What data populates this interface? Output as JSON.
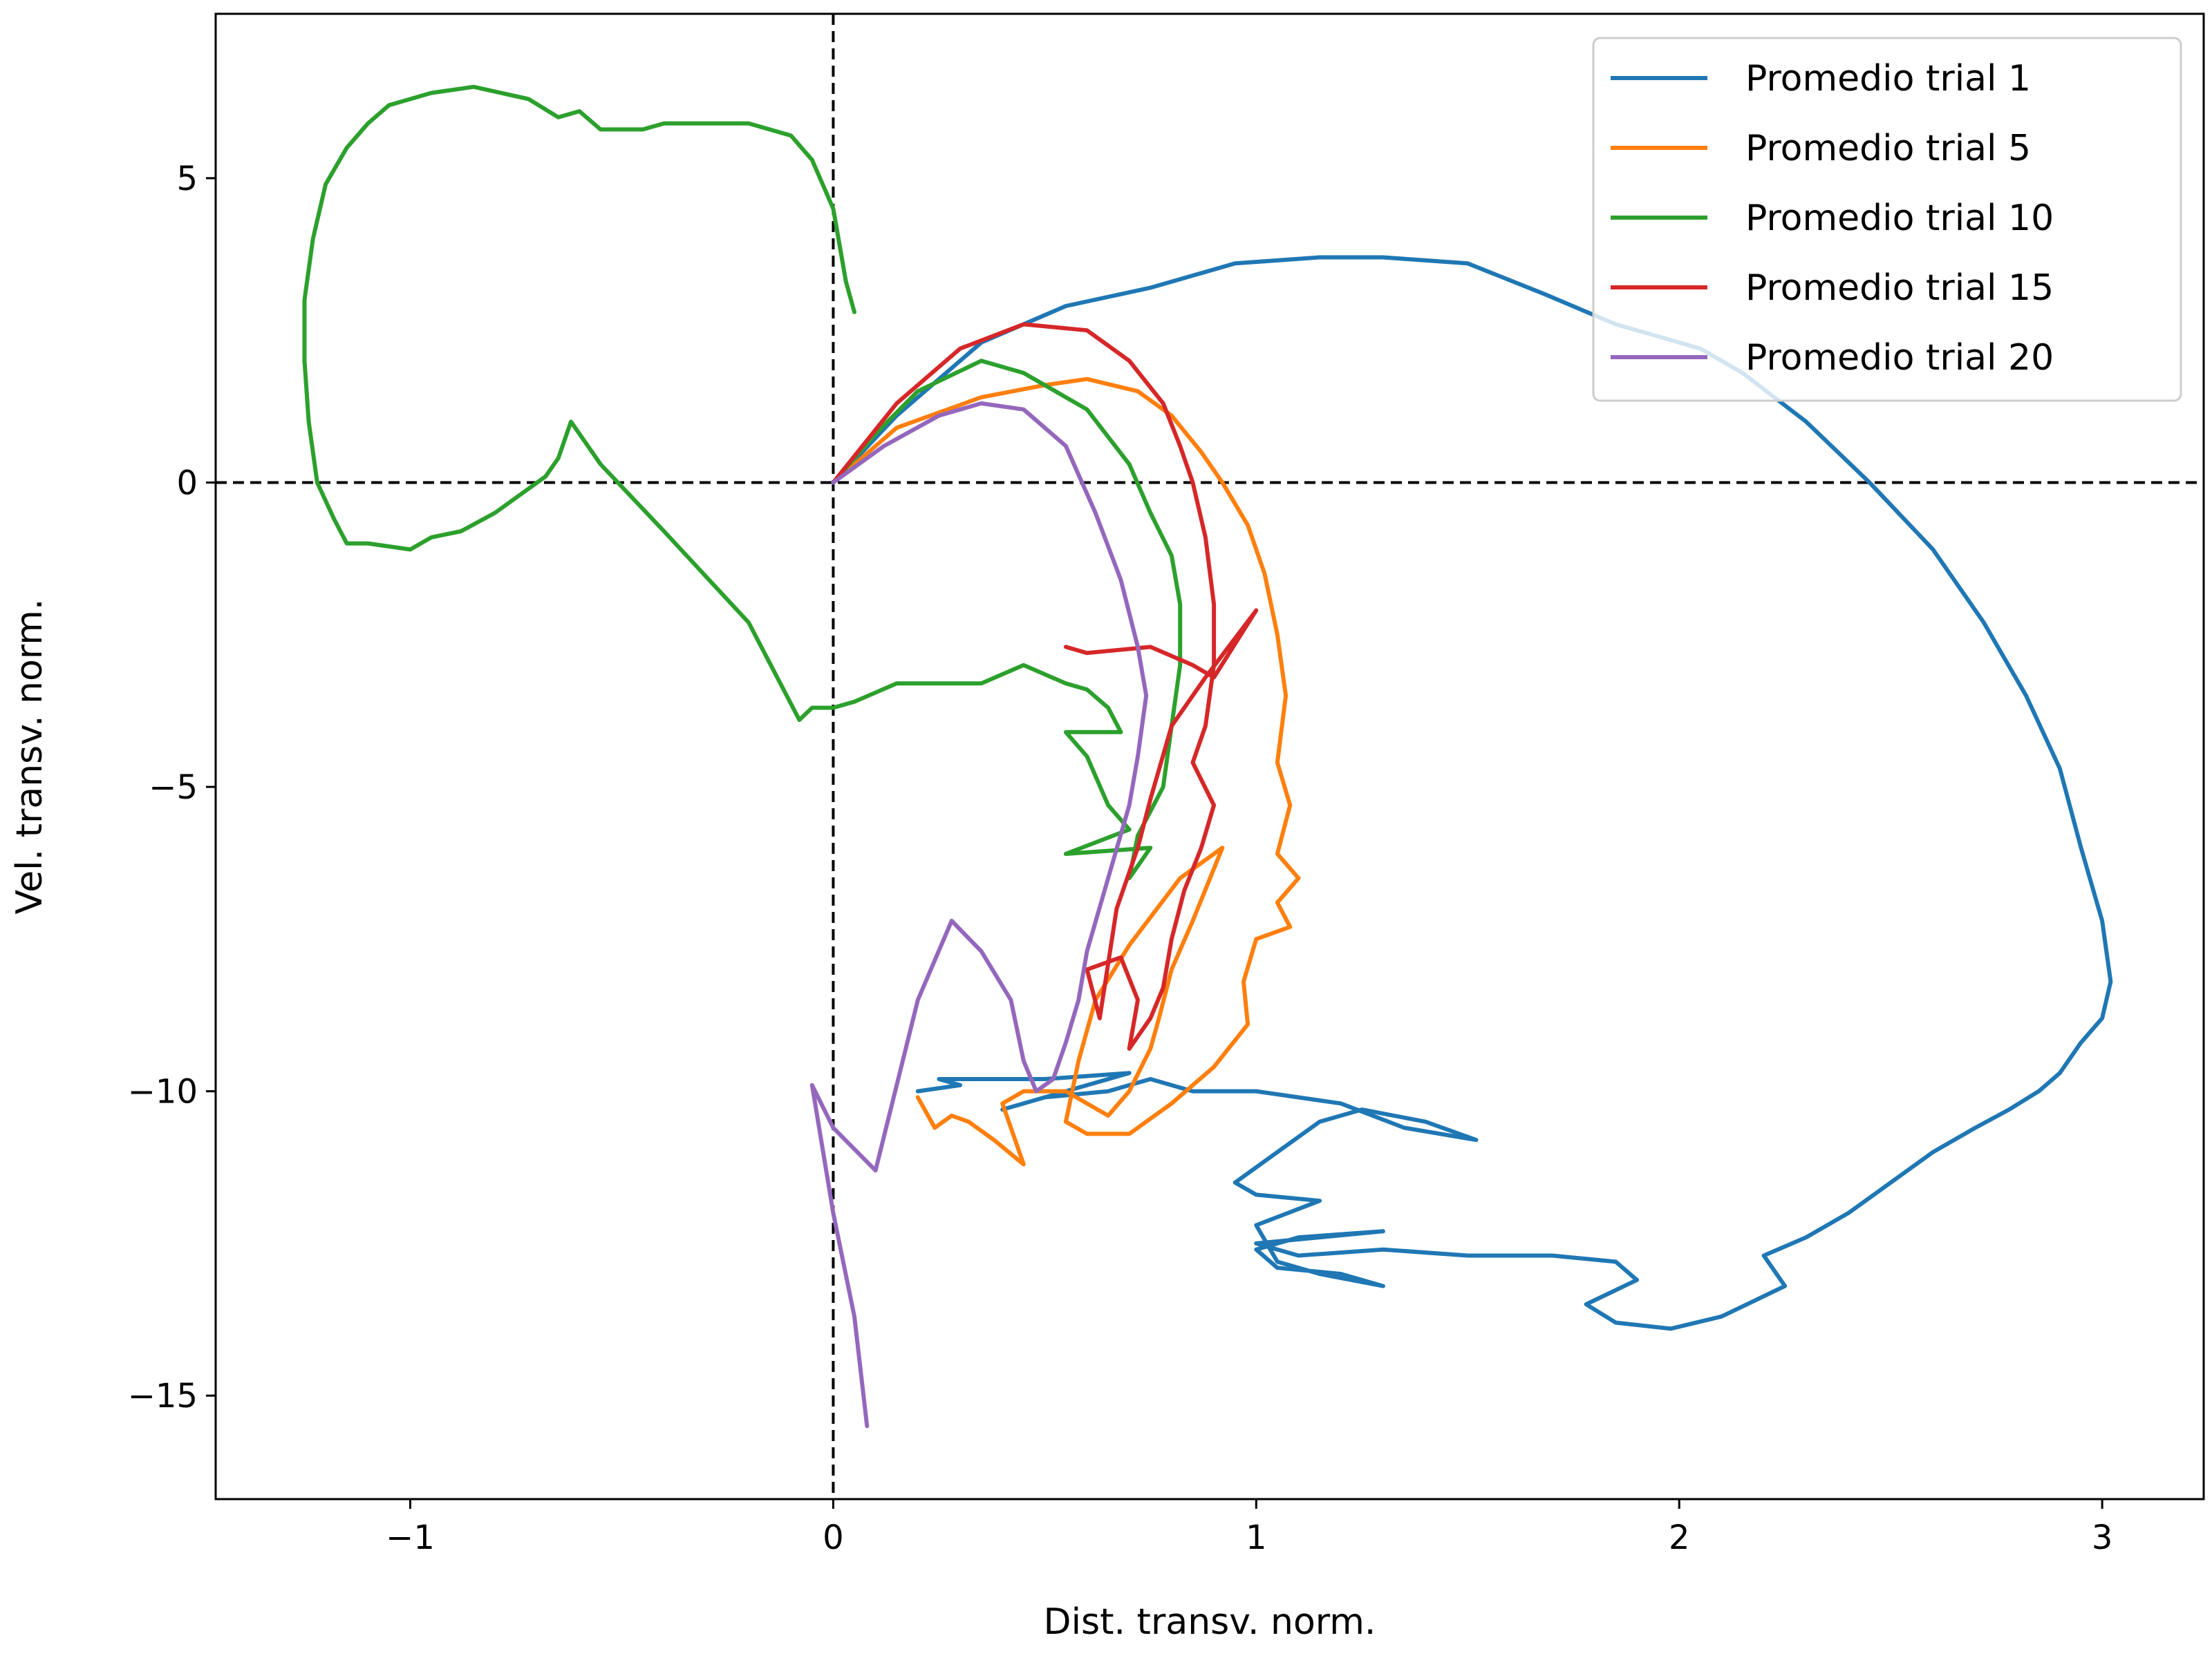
{
  "chart_data": {
    "type": "line",
    "title": "",
    "xlabel": "Dist. transv. norm.",
    "ylabel": "Vel. transv. norm.",
    "xlim": [
      -1.46,
      3.24
    ],
    "ylim": [
      -16.7,
      7.7
    ],
    "xticks": [
      -1,
      0,
      1,
      2,
      3
    ],
    "yticks": [
      5,
      0,
      -5,
      -10,
      -15
    ],
    "xtick_labels": [
      "−1",
      "0",
      "1",
      "2",
      "3"
    ],
    "ytick_labels": [
      "5",
      "0",
      "−5",
      "−10",
      "−15"
    ],
    "reference_lines": {
      "x": 0,
      "y": 0,
      "style": "dashed",
      "color": "#000000"
    },
    "legend_position": "top-right",
    "series": [
      {
        "name": "Promedio trial 1",
        "color": "#1f77b4",
        "points": [
          [
            0,
            0
          ],
          [
            0.15,
            1.1
          ],
          [
            0.35,
            2.3
          ],
          [
            0.55,
            2.9
          ],
          [
            0.75,
            3.2
          ],
          [
            0.95,
            3.6
          ],
          [
            1.15,
            3.7
          ],
          [
            1.3,
            3.7
          ],
          [
            1.5,
            3.6
          ],
          [
            1.68,
            3.1
          ],
          [
            1.85,
            2.6
          ],
          [
            2.05,
            2.2
          ],
          [
            2.15,
            1.8
          ],
          [
            2.3,
            1.0
          ],
          [
            2.45,
            0.0
          ],
          [
            2.6,
            -1.1
          ],
          [
            2.72,
            -2.3
          ],
          [
            2.82,
            -3.5
          ],
          [
            2.9,
            -4.7
          ],
          [
            2.95,
            -6.0
          ],
          [
            3.0,
            -7.2
          ],
          [
            3.02,
            -8.2
          ],
          [
            3.0,
            -8.8
          ],
          [
            2.95,
            -9.2
          ],
          [
            2.9,
            -9.7
          ],
          [
            2.85,
            -10.0
          ],
          [
            2.78,
            -10.3
          ],
          [
            2.7,
            -10.6
          ],
          [
            2.6,
            -11.0
          ],
          [
            2.5,
            -11.5
          ],
          [
            2.4,
            -12.0
          ],
          [
            2.3,
            -12.4
          ],
          [
            2.2,
            -12.7
          ],
          [
            2.25,
            -13.2
          ],
          [
            2.1,
            -13.7
          ],
          [
            1.98,
            -13.9
          ],
          [
            1.85,
            -13.8
          ],
          [
            1.78,
            -13.5
          ],
          [
            1.9,
            -13.1
          ],
          [
            1.85,
            -12.8
          ],
          [
            1.7,
            -12.7
          ],
          [
            1.5,
            -12.7
          ],
          [
            1.3,
            -12.6
          ],
          [
            1.1,
            -12.7
          ],
          [
            1.0,
            -12.5
          ],
          [
            1.3,
            -12.3
          ],
          [
            1.1,
            -12.4
          ],
          [
            1.0,
            -12.6
          ],
          [
            1.05,
            -12.9
          ],
          [
            1.2,
            -13.0
          ],
          [
            1.3,
            -13.2
          ],
          [
            1.15,
            -13.0
          ],
          [
            1.05,
            -12.8
          ],
          [
            1.0,
            -12.2
          ],
          [
            1.15,
            -11.8
          ],
          [
            1.0,
            -11.7
          ],
          [
            0.95,
            -11.5
          ],
          [
            1.05,
            -11.0
          ],
          [
            1.15,
            -10.5
          ],
          [
            1.25,
            -10.3
          ],
          [
            1.4,
            -10.5
          ],
          [
            1.52,
            -10.8
          ],
          [
            1.35,
            -10.6
          ],
          [
            1.2,
            -10.2
          ],
          [
            1.0,
            -10.0
          ],
          [
            0.85,
            -10.0
          ],
          [
            0.75,
            -9.8
          ],
          [
            0.65,
            -10.0
          ],
          [
            0.5,
            -10.1
          ],
          [
            0.4,
            -10.3
          ],
          [
            0.55,
            -10.0
          ],
          [
            0.7,
            -9.7
          ],
          [
            0.5,
            -9.8
          ],
          [
            0.35,
            -9.8
          ],
          [
            0.25,
            -9.8
          ],
          [
            0.3,
            -9.9
          ],
          [
            0.2,
            -10.0
          ]
        ]
      },
      {
        "name": "Promedio trial 5",
        "color": "#ff7f0e",
        "points": [
          [
            0,
            0
          ],
          [
            0.15,
            0.9
          ],
          [
            0.35,
            1.4
          ],
          [
            0.5,
            1.6
          ],
          [
            0.6,
            1.7
          ],
          [
            0.72,
            1.5
          ],
          [
            0.8,
            1.1
          ],
          [
            0.87,
            0.5
          ],
          [
            0.92,
            0.0
          ],
          [
            0.98,
            -0.7
          ],
          [
            1.02,
            -1.5
          ],
          [
            1.05,
            -2.5
          ],
          [
            1.07,
            -3.5
          ],
          [
            1.05,
            -4.6
          ],
          [
            1.08,
            -5.3
          ],
          [
            1.05,
            -6.1
          ],
          [
            1.1,
            -6.5
          ],
          [
            1.05,
            -6.9
          ],
          [
            1.08,
            -7.3
          ],
          [
            1.0,
            -7.5
          ],
          [
            0.97,
            -8.2
          ],
          [
            0.98,
            -8.9
          ],
          [
            0.9,
            -9.6
          ],
          [
            0.8,
            -10.2
          ],
          [
            0.7,
            -10.7
          ],
          [
            0.6,
            -10.7
          ],
          [
            0.55,
            -10.5
          ],
          [
            0.58,
            -9.5
          ],
          [
            0.62,
            -8.5
          ],
          [
            0.7,
            -7.6
          ],
          [
            0.82,
            -6.5
          ],
          [
            0.92,
            -6.0
          ],
          [
            0.85,
            -7.2
          ],
          [
            0.8,
            -8.0
          ],
          [
            0.77,
            -8.8
          ],
          [
            0.75,
            -9.3
          ],
          [
            0.7,
            -10.0
          ],
          [
            0.65,
            -10.4
          ],
          [
            0.6,
            -10.2
          ],
          [
            0.55,
            -10.0
          ],
          [
            0.45,
            -10.0
          ],
          [
            0.4,
            -10.2
          ],
          [
            0.45,
            -11.2
          ],
          [
            0.38,
            -10.8
          ],
          [
            0.32,
            -10.5
          ],
          [
            0.28,
            -10.4
          ],
          [
            0.24,
            -10.6
          ],
          [
            0.2,
            -10.1
          ]
        ]
      },
      {
        "name": "Promedio trial 10",
        "color": "#2ca02c",
        "points": [
          [
            0.05,
            2.8
          ],
          [
            0.03,
            3.3
          ],
          [
            0.0,
            4.5
          ],
          [
            -0.05,
            5.3
          ],
          [
            -0.1,
            5.7
          ],
          [
            -0.2,
            5.9
          ],
          [
            -0.3,
            5.9
          ],
          [
            -0.4,
            5.9
          ],
          [
            -0.45,
            5.8
          ],
          [
            -0.55,
            5.8
          ],
          [
            -0.6,
            6.1
          ],
          [
            -0.65,
            6.0
          ],
          [
            -0.72,
            6.3
          ],
          [
            -0.85,
            6.5
          ],
          [
            -0.95,
            6.4
          ],
          [
            -1.05,
            6.2
          ],
          [
            -1.1,
            5.9
          ],
          [
            -1.15,
            5.5
          ],
          [
            -1.2,
            4.9
          ],
          [
            -1.23,
            4.0
          ],
          [
            -1.25,
            3.0
          ],
          [
            -1.25,
            2.0
          ],
          [
            -1.24,
            1.0
          ],
          [
            -1.22,
            0.0
          ],
          [
            -1.18,
            -0.6
          ],
          [
            -1.15,
            -1.0
          ],
          [
            -1.1,
            -1.0
          ],
          [
            -1.0,
            -1.1
          ],
          [
            -0.95,
            -0.9
          ],
          [
            -0.88,
            -0.8
          ],
          [
            -0.8,
            -0.5
          ],
          [
            -0.72,
            -0.1
          ],
          [
            -0.68,
            0.1
          ],
          [
            -0.65,
            0.4
          ],
          [
            -0.62,
            1.0
          ],
          [
            -0.55,
            0.3
          ],
          [
            -0.4,
            -0.8
          ],
          [
            -0.2,
            -2.3
          ],
          [
            -0.08,
            -3.9
          ],
          [
            -0.05,
            -3.7
          ],
          [
            0.0,
            -3.7
          ],
          [
            0.05,
            -3.6
          ],
          [
            0.15,
            -3.3
          ],
          [
            0.35,
            -3.3
          ],
          [
            0.45,
            -3.0
          ],
          [
            0.55,
            -3.3
          ],
          [
            0.6,
            -3.4
          ],
          [
            0.65,
            -3.7
          ],
          [
            0.68,
            -4.1
          ],
          [
            0.55,
            -4.1
          ],
          [
            0.6,
            -4.5
          ],
          [
            0.65,
            -5.3
          ],
          [
            0.7,
            -5.7
          ],
          [
            0.55,
            -6.1
          ],
          [
            0.75,
            -6.0
          ],
          [
            0.7,
            -6.5
          ],
          [
            0.72,
            -5.8
          ],
          [
            0.78,
            -5.0
          ],
          [
            0.8,
            -4.0
          ],
          [
            0.82,
            -3.0
          ],
          [
            0.82,
            -2.0
          ],
          [
            0.8,
            -1.2
          ],
          [
            0.75,
            -0.5
          ],
          [
            0.7,
            0.3
          ],
          [
            0.6,
            1.2
          ],
          [
            0.45,
            1.8
          ],
          [
            0.35,
            2.0
          ],
          [
            0.2,
            1.5
          ],
          [
            0.1,
            0.8
          ],
          [
            0,
            0
          ]
        ]
      },
      {
        "name": "Promedio trial 15",
        "color": "#d62728",
        "points": [
          [
            0,
            0
          ],
          [
            0.15,
            1.3
          ],
          [
            0.3,
            2.2
          ],
          [
            0.45,
            2.6
          ],
          [
            0.6,
            2.5
          ],
          [
            0.7,
            2.0
          ],
          [
            0.78,
            1.3
          ],
          [
            0.82,
            0.6
          ],
          [
            0.85,
            0.0
          ],
          [
            0.88,
            -0.9
          ],
          [
            0.9,
            -2.0
          ],
          [
            0.9,
            -3.0
          ],
          [
            0.88,
            -4.0
          ],
          [
            0.85,
            -4.6
          ],
          [
            0.9,
            -5.3
          ],
          [
            0.87,
            -6.0
          ],
          [
            0.83,
            -6.7
          ],
          [
            0.8,
            -7.5
          ],
          [
            0.78,
            -8.3
          ],
          [
            0.75,
            -8.8
          ],
          [
            0.7,
            -9.3
          ],
          [
            0.72,
            -8.5
          ],
          [
            0.68,
            -7.8
          ],
          [
            0.6,
            -8.0
          ],
          [
            0.63,
            -8.8
          ],
          [
            0.67,
            -7.0
          ],
          [
            0.72,
            -6.0
          ],
          [
            0.75,
            -5.2
          ],
          [
            0.8,
            -4.0
          ],
          [
            0.88,
            -3.2
          ],
          [
            1.0,
            -2.1
          ],
          [
            0.9,
            -3.2
          ],
          [
            0.85,
            -3.0
          ],
          [
            0.75,
            -2.7
          ],
          [
            0.6,
            -2.8
          ],
          [
            0.55,
            -2.7
          ]
        ]
      },
      {
        "name": "Promedio trial 20",
        "color": "#9467bd",
        "points": [
          [
            0,
            0
          ],
          [
            0.12,
            0.6
          ],
          [
            0.25,
            1.1
          ],
          [
            0.35,
            1.3
          ],
          [
            0.45,
            1.2
          ],
          [
            0.55,
            0.6
          ],
          [
            0.62,
            -0.5
          ],
          [
            0.68,
            -1.6
          ],
          [
            0.72,
            -2.7
          ],
          [
            0.74,
            -3.5
          ],
          [
            0.72,
            -4.5
          ],
          [
            0.7,
            -5.3
          ],
          [
            0.65,
            -6.5
          ],
          [
            0.6,
            -7.7
          ],
          [
            0.58,
            -8.5
          ],
          [
            0.55,
            -9.2
          ],
          [
            0.52,
            -9.8
          ],
          [
            0.48,
            -10.0
          ],
          [
            0.45,
            -9.5
          ],
          [
            0.42,
            -8.5
          ],
          [
            0.35,
            -7.7
          ],
          [
            0.28,
            -7.2
          ],
          [
            0.2,
            -8.5
          ],
          [
            0.1,
            -11.3
          ],
          [
            0.0,
            -10.6
          ],
          [
            -0.05,
            -9.9
          ],
          [
            0.0,
            -12.0
          ],
          [
            0.05,
            -13.7
          ],
          [
            0.08,
            -15.5
          ]
        ]
      }
    ]
  }
}
